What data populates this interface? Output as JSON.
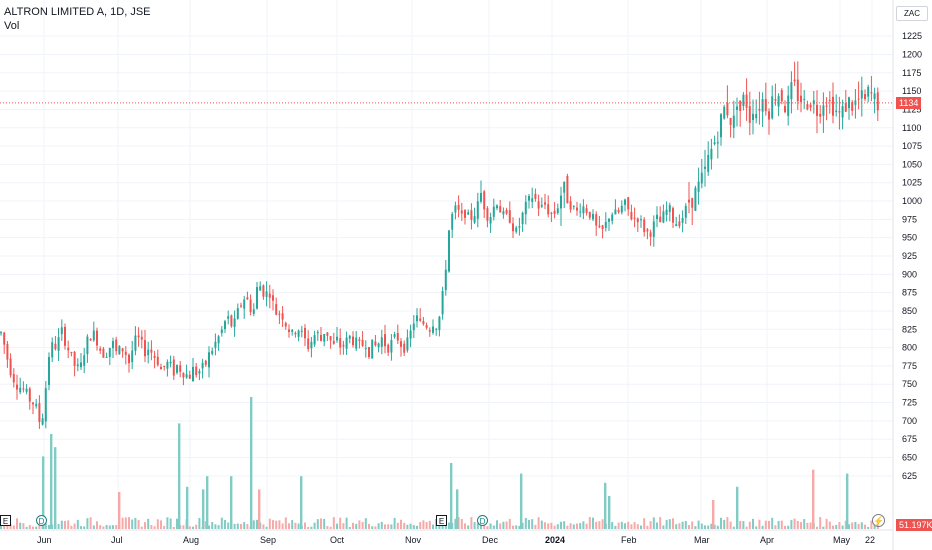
{
  "header": {
    "title": "ALTRON LIMITED A, 1D, JSE",
    "volume_label": "Vol"
  },
  "currency_label": "ZAC",
  "markers": {
    "earnings": "E",
    "dividend": "D",
    "split_icon": "lightning-icon"
  },
  "last_price_badge": "1134",
  "volume_badge": "51.197K",
  "colors": {
    "up": "#26a69a",
    "down": "#ef5350",
    "up_volume": "#80cbc4",
    "down_volume": "#f7a9a7",
    "grid": "#f0f3fa",
    "price_line": "#ef5350"
  },
  "chart_data": {
    "type": "candlestick",
    "title": "ALTRON LIMITED A, 1D, JSE",
    "y_axis": {
      "min": 612.5,
      "max": 1237.5,
      "ticks": [
        625,
        650,
        675,
        700,
        725,
        750,
        775,
        800,
        825,
        850,
        875,
        900,
        925,
        950,
        975,
        1000,
        1025,
        1050,
        1075,
        1100,
        1125,
        1150,
        1175,
        1200,
        1225
      ]
    },
    "x_axis": {
      "labels": [
        "Jun",
        "Jul",
        "Aug",
        "Sep",
        "Oct",
        "Nov",
        "Dec",
        "2024",
        "Feb",
        "Mar",
        "Apr",
        "May",
        "22"
      ]
    },
    "grid": true,
    "last_price": 1134,
    "last_volume": "51.197K",
    "close_path": [
      [
        0,
        820
      ],
      [
        4,
        800
      ],
      [
        8,
        775
      ],
      [
        12,
        760
      ],
      [
        16,
        750
      ],
      [
        20,
        745
      ],
      [
        24,
        740
      ],
      [
        28,
        730
      ],
      [
        32,
        725
      ],
      [
        36,
        715
      ],
      [
        40,
        690
      ],
      [
        44,
        735
      ],
      [
        48,
        790
      ],
      [
        52,
        805
      ],
      [
        56,
        800
      ],
      [
        60,
        825
      ],
      [
        64,
        810
      ],
      [
        68,
        795
      ],
      [
        72,
        780
      ],
      [
        76,
        770
      ],
      [
        80,
        775
      ],
      [
        84,
        800
      ],
      [
        88,
        815
      ],
      [
        92,
        820
      ],
      [
        96,
        810
      ],
      [
        100,
        795
      ],
      [
        104,
        790
      ],
      [
        108,
        800
      ],
      [
        112,
        805
      ],
      [
        116,
        790
      ],
      [
        120,
        800
      ],
      [
        124,
        795
      ],
      [
        128,
        780
      ],
      [
        132,
        800
      ],
      [
        136,
        815
      ],
      [
        140,
        805
      ],
      [
        144,
        795
      ],
      [
        148,
        800
      ],
      [
        152,
        790
      ],
      [
        156,
        785
      ],
      [
        160,
        770
      ],
      [
        164,
        775
      ],
      [
        168,
        780
      ],
      [
        172,
        765
      ],
      [
        176,
        775
      ],
      [
        180,
        770
      ],
      [
        184,
        765
      ],
      [
        188,
        760
      ],
      [
        192,
        770
      ],
      [
        196,
        765
      ],
      [
        200,
        770
      ],
      [
        204,
        775
      ],
      [
        208,
        790
      ],
      [
        212,
        800
      ],
      [
        216,
        810
      ],
      [
        220,
        820
      ],
      [
        224,
        835
      ],
      [
        228,
        840
      ],
      [
        232,
        825
      ],
      [
        236,
        845
      ],
      [
        240,
        860
      ],
      [
        244,
        870
      ],
      [
        248,
        860
      ],
      [
        252,
        845
      ],
      [
        256,
        880
      ],
      [
        260,
        885
      ],
      [
        264,
        870
      ],
      [
        268,
        880
      ],
      [
        272,
        860
      ],
      [
        276,
        845
      ],
      [
        280,
        850
      ],
      [
        284,
        835
      ],
      [
        288,
        825
      ],
      [
        292,
        815
      ],
      [
        296,
        830
      ],
      [
        300,
        820
      ],
      [
        304,
        810
      ],
      [
        308,
        800
      ],
      [
        312,
        815
      ],
      [
        316,
        820
      ],
      [
        320,
        810
      ],
      [
        324,
        825
      ],
      [
        328,
        815
      ],
      [
        332,
        800
      ],
      [
        336,
        810
      ],
      [
        340,
        800
      ],
      [
        344,
        805
      ],
      [
        348,
        815
      ],
      [
        352,
        810
      ],
      [
        356,
        805
      ],
      [
        360,
        800
      ],
      [
        364,
        810
      ],
      [
        368,
        795
      ],
      [
        372,
        805
      ],
      [
        376,
        800
      ],
      [
        380,
        815
      ],
      [
        384,
        805
      ],
      [
        388,
        800
      ],
      [
        392,
        810
      ],
      [
        396,
        815
      ],
      [
        400,
        805
      ],
      [
        404,
        800
      ],
      [
        408,
        810
      ],
      [
        412,
        835
      ],
      [
        416,
        840
      ],
      [
        420,
        830
      ],
      [
        424,
        835
      ],
      [
        428,
        825
      ],
      [
        432,
        835
      ],
      [
        436,
        830
      ],
      [
        440,
        850
      ],
      [
        444,
        900
      ],
      [
        448,
        960
      ],
      [
        452,
        985
      ],
      [
        456,
        990
      ],
      [
        460,
        975
      ],
      [
        464,
        985
      ],
      [
        468,
        975
      ],
      [
        472,
        980
      ],
      [
        476,
        990
      ],
      [
        480,
        1010
      ],
      [
        484,
        990
      ],
      [
        488,
        975
      ],
      [
        492,
        990
      ],
      [
        496,
        1000
      ],
      [
        500,
        985
      ],
      [
        504,
        975
      ],
      [
        508,
        980
      ],
      [
        512,
        965
      ],
      [
        516,
        955
      ],
      [
        520,
        975
      ],
      [
        524,
        990
      ],
      [
        528,
        1000
      ],
      [
        532,
        1010
      ],
      [
        536,
        995
      ],
      [
        540,
        990
      ],
      [
        544,
        995
      ],
      [
        548,
        985
      ],
      [
        552,
        980
      ],
      [
        556,
        990
      ],
      [
        560,
        1010
      ],
      [
        564,
        1015
      ],
      [
        568,
        1000
      ],
      [
        572,
        990
      ],
      [
        576,
        985
      ],
      [
        580,
        995
      ],
      [
        584,
        990
      ],
      [
        588,
        985
      ],
      [
        592,
        975
      ],
      [
        596,
        960
      ],
      [
        600,
        955
      ],
      [
        604,
        965
      ],
      [
        608,
        980
      ],
      [
        612,
        985
      ],
      [
        616,
        980
      ],
      [
        620,
        990
      ],
      [
        624,
        995
      ],
      [
        628,
        985
      ],
      [
        632,
        975
      ],
      [
        636,
        980
      ],
      [
        640,
        970
      ],
      [
        644,
        960
      ],
      [
        648,
        955
      ],
      [
        652,
        965
      ],
      [
        656,
        975
      ],
      [
        660,
        970
      ],
      [
        664,
        985
      ],
      [
        668,
        990
      ],
      [
        672,
        975
      ],
      [
        676,
        970
      ],
      [
        680,
        975
      ],
      [
        684,
        985
      ],
      [
        688,
        1000
      ],
      [
        692,
        1005
      ],
      [
        696,
        1015
      ],
      [
        700,
        1025
      ],
      [
        704,
        1040
      ],
      [
        708,
        1060
      ],
      [
        712,
        1075
      ],
      [
        716,
        1090
      ],
      [
        720,
        1110
      ],
      [
        724,
        1130
      ],
      [
        728,
        1120
      ],
      [
        732,
        1100
      ],
      [
        736,
        1140
      ],
      [
        740,
        1120
      ],
      [
        744,
        1150
      ],
      [
        748,
        1110
      ],
      [
        752,
        1130
      ],
      [
        756,
        1120
      ],
      [
        760,
        1140
      ],
      [
        764,
        1135
      ],
      [
        768,
        1125
      ],
      [
        772,
        1140
      ],
      [
        776,
        1150
      ],
      [
        780,
        1145
      ],
      [
        784,
        1130
      ],
      [
        788,
        1135
      ],
      [
        792,
        1160
      ],
      [
        796,
        1145
      ],
      [
        800,
        1140
      ],
      [
        804,
        1130
      ],
      [
        808,
        1140
      ],
      [
        812,
        1135
      ],
      [
        816,
        1125
      ],
      [
        820,
        1130
      ],
      [
        824,
        1145
      ],
      [
        828,
        1135
      ],
      [
        832,
        1130
      ],
      [
        836,
        1120
      ],
      [
        840,
        1115
      ],
      [
        844,
        1130
      ],
      [
        848,
        1135
      ],
      [
        852,
        1130
      ],
      [
        856,
        1135
      ],
      [
        860,
        1140
      ],
      [
        864,
        1135
      ],
      [
        868,
        1150
      ],
      [
        872,
        1140
      ],
      [
        876,
        1134
      ]
    ],
    "volume_spikes": [
      [
        42,
        0.55,
        "up"
      ],
      [
        50,
        0.72,
        "up"
      ],
      [
        54,
        0.62,
        "up"
      ],
      [
        118,
        0.28,
        "down"
      ],
      [
        178,
        0.8,
        "up"
      ],
      [
        186,
        0.32,
        "up"
      ],
      [
        202,
        0.3,
        "up"
      ],
      [
        206,
        0.4,
        "up"
      ],
      [
        230,
        0.4,
        "up"
      ],
      [
        250,
        1.0,
        "up"
      ],
      [
        258,
        0.3,
        "down"
      ],
      [
        300,
        0.4,
        "up"
      ],
      [
        450,
        0.5,
        "up"
      ],
      [
        456,
        0.3,
        "up"
      ],
      [
        520,
        0.42,
        "up"
      ],
      [
        604,
        0.35,
        "up"
      ],
      [
        608,
        0.25,
        "up"
      ],
      [
        712,
        0.22,
        "down"
      ],
      [
        736,
        0.32,
        "up"
      ],
      [
        812,
        0.45,
        "down"
      ],
      [
        846,
        0.42,
        "up"
      ]
    ]
  }
}
